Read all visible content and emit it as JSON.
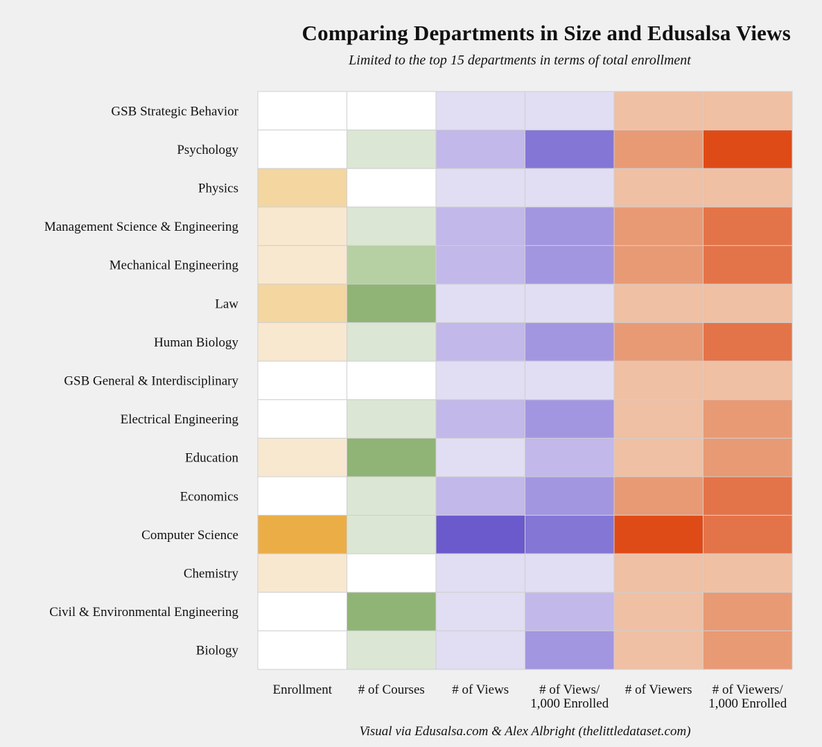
{
  "title": "Comparing Departments in Size and Edusalsa Views",
  "subtitle": "Limited to the top 15 departments in terms of total enrollment",
  "caption": "Visual via Edusalsa.com & Alex Albright (thelittledataset.com)",
  "chart_data": {
    "type": "heatmap",
    "rows": [
      "GSB Strategic Behavior",
      "Psychology",
      "Physics",
      "Management Science & Engineering",
      "Mechanical Engineering",
      "Law",
      "Human Biology",
      "GSB General & Interdisciplinary",
      "Electrical Engineering",
      "Education",
      "Economics",
      "Computer Science",
      "Chemistry",
      "Civil & Environmental Engineering",
      "Biology"
    ],
    "columns": [
      {
        "label": [
          "Enrollment"
        ],
        "palette": "gold"
      },
      {
        "label": [
          "# of Courses"
        ],
        "palette": "green"
      },
      {
        "label": [
          "# of Views"
        ],
        "palette": "purple"
      },
      {
        "label": [
          "# of Views/",
          "1,000 Enrolled"
        ],
        "palette": "purple"
      },
      {
        "label": [
          "# of Viewers"
        ],
        "palette": "orange"
      },
      {
        "label": [
          "# of Viewers/",
          "1,000 Enrolled"
        ],
        "palette": "orange"
      }
    ],
    "palettes": {
      "gold": [
        "#ffffff",
        "#f8e8d0",
        "#f3d6a0",
        "#ebae47"
      ],
      "green": [
        "#ffffff",
        "#dbe6d4",
        "#b6cfa3",
        "#8fb475"
      ],
      "purple": [
        "#e1ddf3",
        "#c2b8e9",
        "#a396e0",
        "#8376d5",
        "#6a5acc"
      ],
      "orange": [
        "#efc0a4",
        "#e89a75",
        "#e3744a",
        "#df4b17"
      ]
    },
    "levels": [
      [
        0,
        0,
        0,
        0,
        0,
        0
      ],
      [
        0,
        1,
        1,
        3,
        1,
        3
      ],
      [
        2,
        0,
        0,
        0,
        0,
        0
      ],
      [
        1,
        1,
        1,
        2,
        1,
        2
      ],
      [
        1,
        2,
        1,
        2,
        1,
        2
      ],
      [
        2,
        3,
        0,
        0,
        0,
        0
      ],
      [
        1,
        1,
        1,
        2,
        1,
        2
      ],
      [
        0,
        0,
        0,
        0,
        0,
        0
      ],
      [
        0,
        1,
        1,
        2,
        0,
        1
      ],
      [
        1,
        3,
        0,
        1,
        0,
        1
      ],
      [
        0,
        1,
        1,
        2,
        1,
        2
      ],
      [
        3,
        1,
        4,
        3,
        3,
        2
      ],
      [
        1,
        0,
        0,
        0,
        0,
        0
      ],
      [
        0,
        3,
        0,
        1,
        0,
        1
      ],
      [
        0,
        1,
        0,
        2,
        0,
        1
      ]
    ],
    "grid_color": "#cfcfcf"
  }
}
